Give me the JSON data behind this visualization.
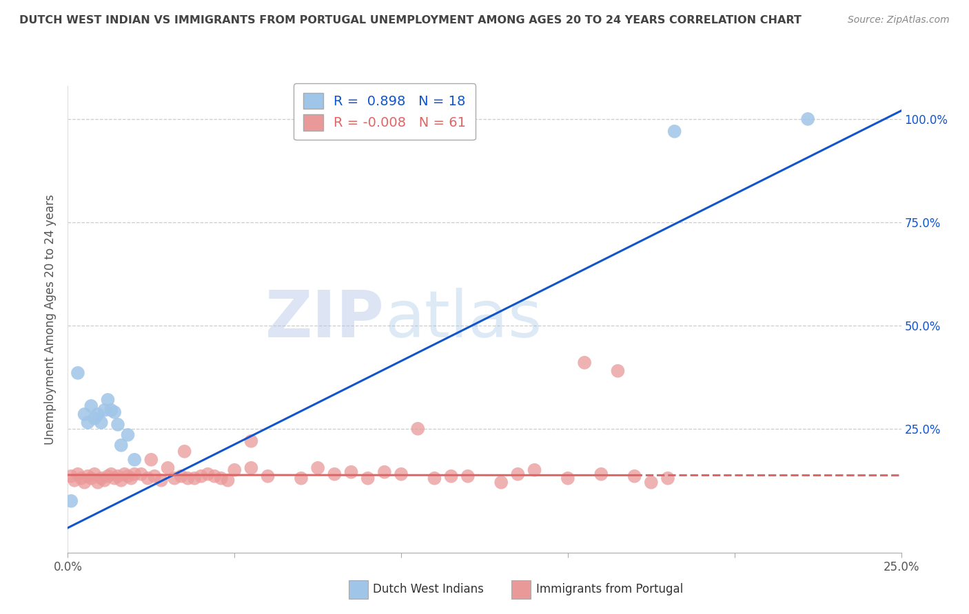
{
  "title": "DUTCH WEST INDIAN VS IMMIGRANTS FROM PORTUGAL UNEMPLOYMENT AMONG AGES 20 TO 24 YEARS CORRELATION CHART",
  "source": "Source: ZipAtlas.com",
  "ylabel": "Unemployment Among Ages 20 to 24 years",
  "watermark_zip": "ZIP",
  "watermark_atlas": "atlas",
  "blue_R": 0.898,
  "blue_N": 18,
  "pink_R": -0.008,
  "pink_N": 61,
  "blue_label": "Dutch West Indians",
  "pink_label": "Immigrants from Portugal",
  "xlim": [
    0.0,
    0.25
  ],
  "ylim": [
    -0.05,
    1.08
  ],
  "xtick_positions": [
    0.0,
    0.05,
    0.1,
    0.15,
    0.2,
    0.25
  ],
  "xtick_labels": [
    "0.0%",
    "",
    "",
    "",
    "",
    "25.0%"
  ],
  "ytick_right_vals": [
    0.25,
    0.5,
    0.75
  ],
  "ytick_right_labels": [
    "25.0%",
    "50.0%",
    "75.0%"
  ],
  "ytick_top_label": "100.0%",
  "ytick_top_val": 1.0,
  "blue_scatter_x": [
    0.001,
    0.003,
    0.005,
    0.006,
    0.007,
    0.008,
    0.009,
    0.01,
    0.011,
    0.012,
    0.013,
    0.014,
    0.015,
    0.016,
    0.018,
    0.02,
    0.182,
    0.222
  ],
  "blue_scatter_y": [
    0.075,
    0.385,
    0.285,
    0.265,
    0.305,
    0.275,
    0.285,
    0.265,
    0.295,
    0.32,
    0.295,
    0.29,
    0.26,
    0.21,
    0.235,
    0.175,
    0.97,
    1.0
  ],
  "pink_scatter_x": [
    0.001,
    0.002,
    0.003,
    0.004,
    0.005,
    0.006,
    0.007,
    0.008,
    0.009,
    0.01,
    0.011,
    0.012,
    0.013,
    0.014,
    0.015,
    0.016,
    0.017,
    0.018,
    0.019,
    0.02,
    0.022,
    0.024,
    0.026,
    0.028,
    0.03,
    0.032,
    0.034,
    0.036,
    0.038,
    0.04,
    0.042,
    0.044,
    0.046,
    0.048,
    0.05,
    0.06,
    0.07,
    0.08,
    0.09,
    0.1,
    0.11,
    0.12,
    0.13,
    0.14,
    0.15,
    0.16,
    0.17,
    0.18,
    0.025,
    0.035,
    0.055,
    0.075,
    0.095,
    0.115,
    0.135,
    0.155,
    0.175,
    0.055,
    0.085,
    0.105,
    0.165
  ],
  "pink_scatter_y": [
    0.135,
    0.125,
    0.14,
    0.13,
    0.12,
    0.135,
    0.13,
    0.14,
    0.12,
    0.13,
    0.125,
    0.135,
    0.14,
    0.13,
    0.135,
    0.125,
    0.14,
    0.135,
    0.13,
    0.14,
    0.14,
    0.13,
    0.135,
    0.125,
    0.155,
    0.13,
    0.135,
    0.13,
    0.13,
    0.135,
    0.14,
    0.135,
    0.13,
    0.125,
    0.15,
    0.135,
    0.13,
    0.14,
    0.13,
    0.14,
    0.13,
    0.135,
    0.12,
    0.15,
    0.13,
    0.14,
    0.135,
    0.13,
    0.175,
    0.195,
    0.155,
    0.155,
    0.145,
    0.135,
    0.14,
    0.41,
    0.12,
    0.22,
    0.145,
    0.25,
    0.39
  ],
  "blue_color": "#9fc5e8",
  "pink_color": "#ea9999",
  "blue_line_color": "#1155cc",
  "pink_line_color": "#e06666",
  "pink_line_solid_end": 0.17,
  "pink_line_y0": 0.138,
  "pink_line_y1": 0.137,
  "blue_line_x0": 0.0,
  "blue_line_y0": 0.01,
  "blue_line_x1": 0.25,
  "blue_line_y1": 1.02,
  "grid_color": "#cccccc",
  "bg_color": "#ffffff",
  "title_color": "#434343",
  "source_color": "#888888",
  "watermark_zip_color": "#b4c7e7",
  "watermark_atlas_color": "#9fc5e8"
}
